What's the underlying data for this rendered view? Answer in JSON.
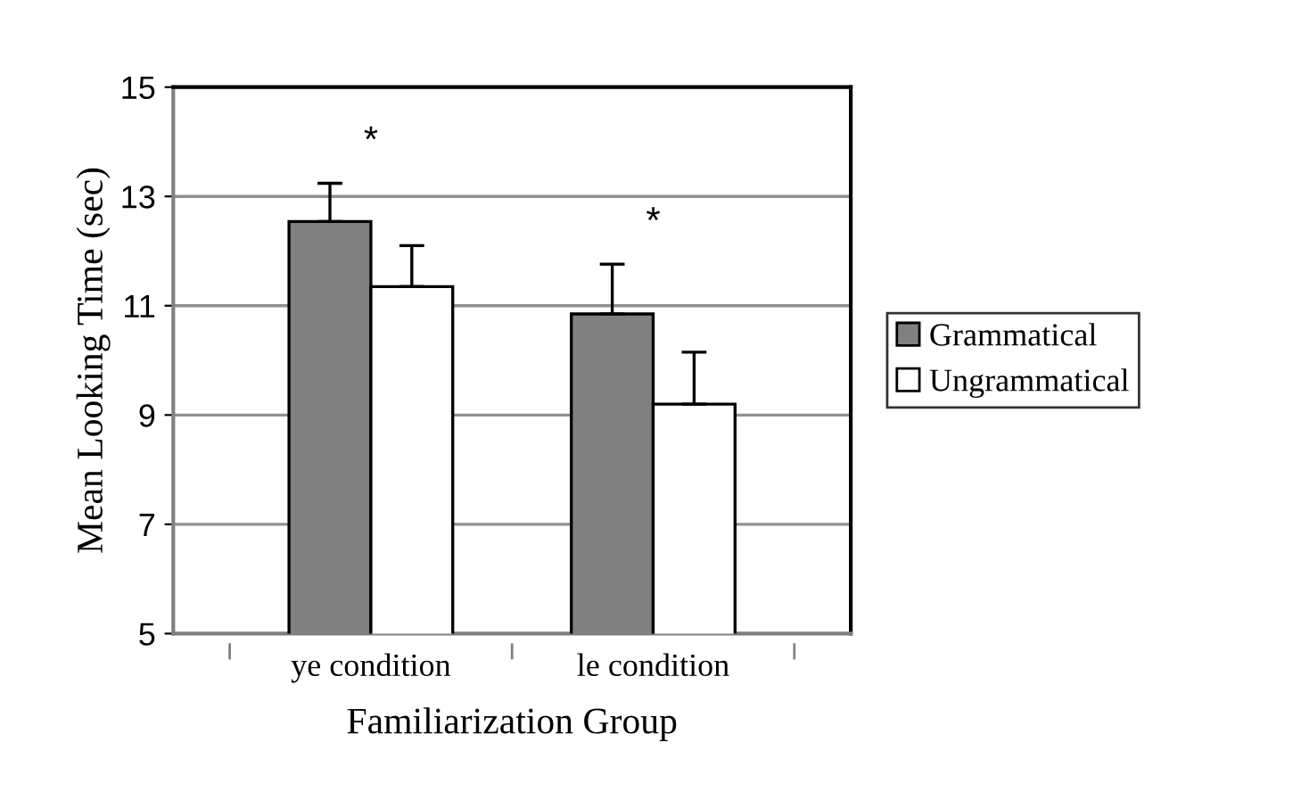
{
  "chart_data": {
    "type": "bar",
    "xlabel": "Familiarization Group",
    "ylabel": "Mean Looking Time (sec)",
    "categories": [
      "ye condition",
      "le condition"
    ],
    "series": [
      {
        "name": "Grammatical",
        "color": "#808080",
        "values": [
          12.54,
          10.85
        ],
        "errors": [
          [
            12.54,
            13.24
          ],
          [
            10.85,
            11.76
          ]
        ]
      },
      {
        "name": "Ungrammatical",
        "color": "#ffffff",
        "values": [
          11.35,
          9.2
        ],
        "errors": [
          [
            11.35,
            12.1
          ],
          [
            9.2,
            10.15
          ]
        ]
      }
    ],
    "ylim": [
      5,
      15
    ],
    "yticks": [
      5,
      7,
      9,
      11,
      13,
      15
    ],
    "grid": "y",
    "legend": "right",
    "annotations": [
      "*",
      "*"
    ]
  }
}
